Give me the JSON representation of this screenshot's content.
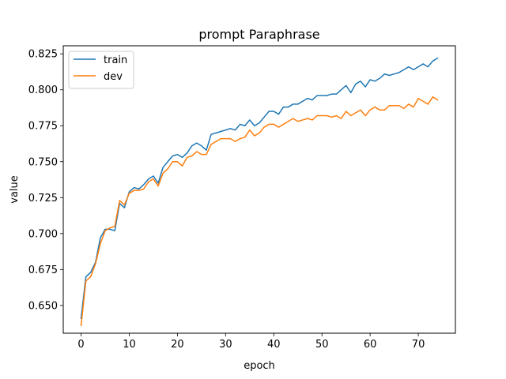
{
  "chart_data": {
    "type": "line",
    "title": "prompt Paraphrase",
    "xlabel": "epoch",
    "ylabel": "value",
    "xlim": [
      -3.7,
      77.7
    ],
    "ylim": [
      0.6307,
      0.8306
    ],
    "xticks": [
      0,
      10,
      20,
      30,
      40,
      50,
      60,
      70
    ],
    "yticks": [
      0.65,
      0.675,
      0.7,
      0.725,
      0.75,
      0.775,
      0.8,
      0.825
    ],
    "ytick_labels": [
      "0.650",
      "0.675",
      "0.700",
      "0.725",
      "0.750",
      "0.775",
      "0.800",
      "0.825"
    ],
    "grid": false,
    "legend_position": "top-left",
    "x": [
      0,
      1,
      2,
      3,
      4,
      5,
      6,
      7,
      8,
      9,
      10,
      11,
      12,
      13,
      14,
      15,
      16,
      17,
      18,
      19,
      20,
      21,
      22,
      23,
      24,
      25,
      26,
      27,
      28,
      29,
      30,
      31,
      32,
      33,
      34,
      35,
      36,
      37,
      38,
      39,
      40,
      41,
      42,
      43,
      44,
      45,
      46,
      47,
      48,
      49,
      50,
      51,
      52,
      53,
      54,
      55,
      56,
      57,
      58,
      59,
      60,
      61,
      62,
      63,
      64,
      65,
      66,
      67,
      68,
      69,
      70,
      71,
      72,
      73,
      74
    ],
    "series": [
      {
        "name": "train",
        "color": "#1f77b4",
        "values": [
          0.641,
          0.67,
          0.673,
          0.68,
          0.697,
          0.703,
          0.703,
          0.702,
          0.721,
          0.718,
          0.729,
          0.732,
          0.731,
          0.734,
          0.738,
          0.74,
          0.735,
          0.746,
          0.75,
          0.754,
          0.755,
          0.753,
          0.756,
          0.761,
          0.763,
          0.761,
          0.758,
          0.769,
          0.77,
          0.771,
          0.772,
          0.773,
          0.772,
          0.776,
          0.775,
          0.779,
          0.775,
          0.777,
          0.781,
          0.785,
          0.785,
          0.783,
          0.788,
          0.788,
          0.79,
          0.79,
          0.792,
          0.794,
          0.793,
          0.796,
          0.796,
          0.796,
          0.797,
          0.797,
          0.8,
          0.803,
          0.798,
          0.804,
          0.806,
          0.802,
          0.807,
          0.806,
          0.808,
          0.811,
          0.81,
          0.811,
          0.812,
          0.814,
          0.816,
          0.814,
          0.816,
          0.818,
          0.816,
          0.82,
          0.822
        ]
      },
      {
        "name": "dev",
        "color": "#ff7f0e",
        "values": [
          0.636,
          0.667,
          0.67,
          0.679,
          0.693,
          0.702,
          0.704,
          0.705,
          0.723,
          0.72,
          0.728,
          0.73,
          0.73,
          0.731,
          0.736,
          0.738,
          0.733,
          0.742,
          0.745,
          0.75,
          0.75,
          0.747,
          0.753,
          0.754,
          0.757,
          0.755,
          0.755,
          0.762,
          0.764,
          0.766,
          0.766,
          0.766,
          0.764,
          0.766,
          0.767,
          0.772,
          0.768,
          0.77,
          0.774,
          0.776,
          0.776,
          0.774,
          0.776,
          0.778,
          0.78,
          0.778,
          0.779,
          0.78,
          0.779,
          0.782,
          0.782,
          0.782,
          0.781,
          0.782,
          0.78,
          0.785,
          0.782,
          0.784,
          0.786,
          0.782,
          0.786,
          0.788,
          0.786,
          0.786,
          0.789,
          0.789,
          0.789,
          0.787,
          0.79,
          0.788,
          0.794,
          0.792,
          0.79,
          0.795,
          0.793
        ]
      }
    ]
  }
}
